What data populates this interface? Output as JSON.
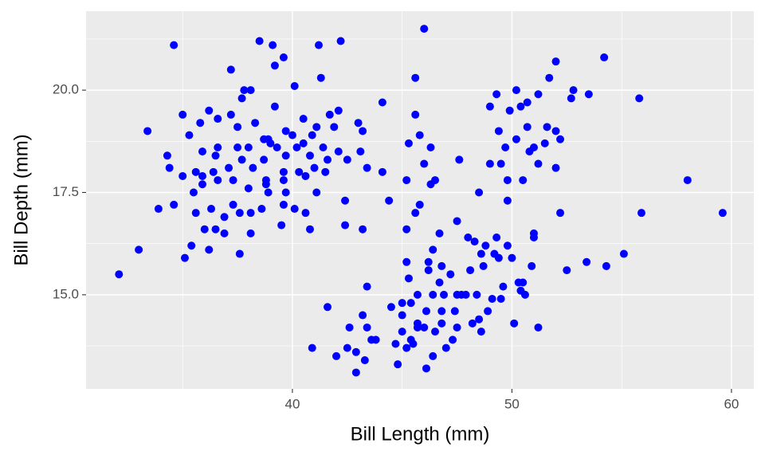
{
  "chart_data": {
    "type": "scatter",
    "x_label": "Bill Length (mm)",
    "y_label": "Bill Depth (mm)",
    "color": "#0000ff",
    "xlim": [
      30.6,
      61.02
    ],
    "ylim": [
      12.7,
      21.93
    ],
    "xticks": [
      40,
      50,
      60
    ],
    "yticks": [
      {
        "value": 15,
        "label": "15.0"
      },
      {
        "value": 17.5,
        "label": "17.5"
      },
      {
        "value": 20,
        "label": "20.0"
      }
    ],
    "minor_xticks": [
      35,
      45,
      55
    ],
    "minor_yticks": [
      13.75,
      16.25,
      18.75,
      21.25
    ],
    "grid": true,
    "x": [
      32.1,
      33.0,
      33.4,
      33.9,
      34.3,
      34.4,
      34.6,
      34.6,
      35.0,
      35.0,
      35.1,
      35.3,
      35.4,
      35.5,
      35.6,
      35.6,
      35.8,
      35.9,
      35.9,
      35.9,
      36.0,
      36.2,
      36.2,
      36.3,
      36.4,
      36.5,
      36.5,
      36.6,
      36.6,
      36.6,
      36.9,
      36.9,
      37.1,
      37.2,
      37.2,
      37.3,
      37.3,
      37.5,
      37.5,
      37.6,
      37.6,
      37.7,
      37.7,
      37.8,
      38.0,
      38.0,
      38.1,
      38.1,
      38.1,
      38.2,
      38.3,
      38.5,
      38.6,
      38.7,
      38.7,
      38.8,
      38.8,
      38.9,
      38.9,
      39.0,
      39.1,
      39.2,
      39.2,
      39.3,
      39.5,
      39.6,
      39.6,
      39.6,
      39.6,
      39.7,
      39.7,
      39.7,
      40.0,
      40.1,
      40.1,
      40.2,
      40.3,
      40.5,
      40.5,
      40.6,
      40.6,
      40.8,
      40.8,
      40.9,
      40.9,
      41.0,
      41.1,
      41.1,
      41.2,
      41.3,
      41.4,
      41.5,
      41.6,
      41.6,
      41.7,
      41.9,
      42.0,
      42.1,
      42.1,
      42.2,
      42.4,
      42.4,
      42.5,
      42.5,
      42.6,
      42.9,
      42.9,
      43.0,
      43.1,
      43.2,
      43.2,
      43.2,
      43.3,
      43.4,
      43.4,
      43.4,
      43.6,
      43.8,
      44.1,
      44.1,
      44.4,
      44.5,
      44.7,
      44.8,
      45.0,
      45.0,
      45.2,
      45.2,
      45.2,
      45.2,
      45.3,
      45.3,
      45.4,
      45.5,
      45.6,
      45.6,
      45.6,
      45.7,
      45.7,
      45.8,
      45.8,
      46.0,
      46.0,
      46.1,
      46.1,
      46.2,
      46.3,
      46.3,
      46.4,
      46.4,
      46.5,
      46.5,
      46.7,
      46.7,
      46.8,
      46.9,
      47.0,
      47.2,
      47.3,
      47.4,
      47.5,
      47.6,
      47.7,
      48.0,
      48.1,
      48.2,
      48.3,
      48.4,
      48.5,
      48.6,
      48.6,
      48.7,
      48.8,
      49.0,
      49.0,
      49.1,
      49.2,
      49.3,
      49.4,
      49.4,
      49.5,
      49.6,
      49.7,
      49.8,
      49.8,
      49.9,
      50.0,
      50.1,
      50.2,
      50.2,
      50.3,
      50.4,
      50.5,
      50.6,
      50.7,
      50.7,
      50.8,
      50.9,
      51.0,
      51.0,
      51.0,
      51.2,
      51.2,
      51.2,
      51.5,
      51.6,
      51.7,
      52.0,
      52.0,
      52.0,
      52.2,
      52.2,
      52.5,
      52.7,
      52.8,
      53.4,
      53.5,
      54.2,
      54.3,
      55.1,
      55.8,
      55.9,
      58.0,
      59.6,
      46.2,
      46.8,
      47.5,
      47.9,
      49.3,
      49.8,
      50.4,
      50.5,
      45.0,
      45.4,
      45.7,
      46.0,
      46.8,
      47.5,
      48.5,
      48.9,
      49.5,
      46.4
    ],
    "values": [
      15.5,
      16.1,
      19.0,
      17.1,
      18.4,
      18.1,
      21.1,
      17.2,
      17.9,
      19.4,
      15.9,
      18.9,
      16.2,
      17.5,
      18.0,
      17.0,
      19.2,
      18.5,
      17.9,
      17.7,
      16.6,
      16.1,
      19.5,
      17.1,
      18.0,
      18.4,
      16.6,
      18.6,
      19.3,
      17.8,
      16.9,
      16.5,
      18.1,
      19.4,
      20.5,
      17.8,
      17.2,
      18.6,
      19.1,
      17.0,
      16.0,
      18.3,
      19.8,
      20.0,
      18.6,
      17.6,
      16.5,
      17.0,
      20.0,
      18.1,
      19.2,
      21.2,
      17.1,
      18.8,
      18.3,
      17.7,
      17.8,
      17.5,
      18.8,
      18.7,
      21.1,
      19.6,
      20.6,
      18.6,
      16.7,
      20.8,
      17.2,
      17.8,
      18.0,
      19.0,
      18.4,
      17.5,
      18.9,
      20.1,
      17.1,
      18.6,
      18.0,
      18.7,
      19.3,
      17.0,
      17.9,
      18.4,
      16.6,
      13.7,
      18.9,
      18.1,
      19.1,
      17.5,
      21.1,
      20.3,
      18.6,
      18.0,
      18.3,
      14.7,
      19.4,
      19.1,
      13.5,
      19.5,
      18.5,
      21.2,
      17.3,
      16.7,
      18.3,
      13.7,
      14.2,
      13.6,
      13.1,
      19.2,
      18.5,
      16.6,
      19.0,
      14.5,
      13.4,
      15.2,
      14.2,
      18.1,
      13.9,
      13.9,
      19.7,
      18.0,
      17.3,
      14.7,
      13.8,
      13.3,
      14.8,
      14.5,
      16.6,
      15.8,
      17.8,
      13.7,
      15.4,
      18.7,
      14.8,
      13.8,
      19.4,
      20.3,
      17.0,
      15.0,
      14.3,
      17.2,
      18.9,
      21.5,
      18.2,
      13.2,
      14.6,
      15.8,
      17.7,
      18.6,
      15.0,
      13.5,
      14.1,
      17.8,
      15.3,
      16.5,
      14.6,
      15.0,
      13.7,
      15.5,
      13.9,
      14.6,
      16.8,
      18.3,
      15.0,
      16.4,
      15.6,
      14.3,
      16.3,
      15.0,
      17.5,
      14.1,
      16.0,
      15.7,
      16.2,
      19.6,
      18.2,
      14.9,
      16.0,
      19.9,
      19.0,
      15.9,
      18.2,
      15.2,
      18.6,
      17.3,
      17.8,
      19.5,
      15.9,
      14.3,
      18.8,
      20.0,
      15.3,
      19.6,
      17.8,
      15.0,
      19.7,
      19.1,
      18.5,
      15.7,
      18.6,
      16.5,
      16.4,
      19.9,
      14.2,
      18.2,
      18.7,
      19.1,
      20.3,
      18.1,
      20.7,
      19.0,
      17.0,
      18.8,
      15.6,
      19.8,
      20.0,
      15.8,
      19.9,
      20.8,
      15.7,
      16.0,
      19.8,
      17.0,
      17.8,
      17.0,
      15.6,
      15.7,
      15.0,
      15.0,
      16.4,
      16.2,
      15.1,
      15.3,
      14.1,
      13.9,
      14.2,
      14.2,
      14.3,
      14.2,
      14.4,
      14.6,
      14.9,
      16.1
    ]
  }
}
